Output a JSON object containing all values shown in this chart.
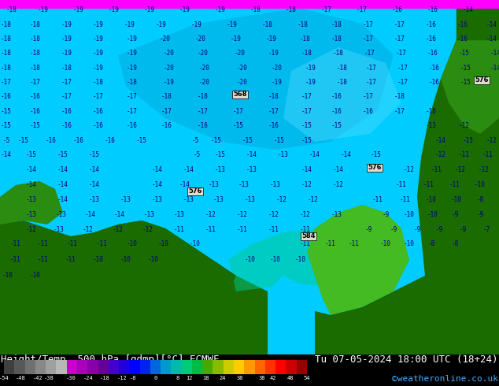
{
  "title_left": "Height/Temp. 500 hPa [gdmp][°C] ECMWF",
  "title_right": "Tu 07-05-2024 18:00 UTC (18+24)",
  "credit": "©weatheronline.co.uk",
  "fig_width": 6.34,
  "fig_height": 4.9,
  "dpi": 100,
  "title_fontsize": 9,
  "credit_fontsize": 8,
  "map_cyan": "#00ccff",
  "map_cyan_dark": "#00aadd",
  "map_cyan_light": "#55ddff",
  "map_green_dark": "#1a6b00",
  "map_green_mid": "#2a8c10",
  "map_green_light": "#44bb22",
  "map_teal": "#00cc88",
  "map_magenta": "#ff00ff",
  "label_color": "#000080",
  "cbar_colors": [
    "#404040",
    "#585858",
    "#707070",
    "#888888",
    "#a0a0a0",
    "#b8b8b8",
    "#cc00cc",
    "#aa00bb",
    "#8800aa",
    "#660099",
    "#4400cc",
    "#2200dd",
    "#0000ff",
    "#0022ee",
    "#0066dd",
    "#0099cc",
    "#00bbaa",
    "#00cc77",
    "#00bb44",
    "#44aa00",
    "#88bb00",
    "#cccc00",
    "#ffcc00",
    "#ff9900",
    "#ff6600",
    "#ff3300",
    "#ff0000",
    "#cc0000",
    "#990000"
  ],
  "cbar_tick_labels": [
    "-54",
    "-48",
    "-42",
    "-38",
    "-30",
    "-24",
    "-18",
    "-12",
    "-8",
    "0",
    "8",
    "12",
    "18",
    "24",
    "30",
    "38",
    "42",
    "48",
    "54"
  ],
  "cbar_tick_vals": [
    -54,
    -48,
    -42,
    -38,
    -30,
    -24,
    -18,
    -12,
    -8,
    0,
    8,
    12,
    18,
    24,
    30,
    38,
    42,
    48,
    54
  ],
  "cbar_vmin": -54,
  "cbar_vmax": 54
}
